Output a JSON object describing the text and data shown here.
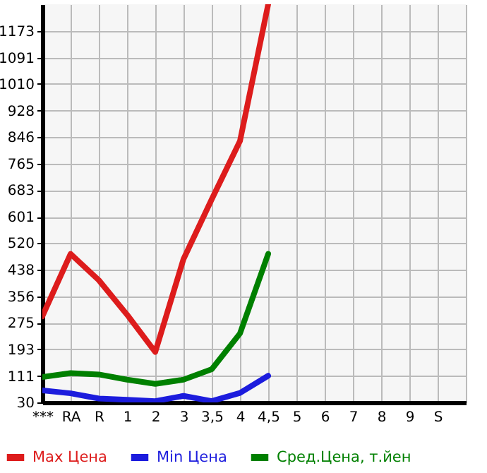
{
  "chart_data": {
    "type": "line",
    "categories": [
      "***",
      "RA",
      "R",
      "1",
      "2",
      "3",
      "3,5",
      "4",
      "4,5",
      "5",
      "6",
      "7",
      "8",
      "9",
      "S",
      null
    ],
    "series": [
      {
        "name": "Max Цена",
        "color": "#dd1c1c",
        "values": [
          295,
          487,
          406,
          300,
          185,
          471,
          655,
          834,
          1255,
          null,
          null,
          null,
          null,
          null,
          null,
          null
        ]
      },
      {
        "name": "Min Цена",
        "color": "#1c1cdd",
        "values": [
          67,
          58,
          42,
          38,
          34,
          50,
          34,
          59,
          112,
          null,
          null,
          null,
          null,
          null,
          null,
          null
        ]
      },
      {
        "name": "Сред.Цена, т.йен",
        "color": "#008000",
        "values": [
          108,
          120,
          116,
          100,
          87,
          100,
          132,
          242,
          487,
          null,
          null,
          null,
          null,
          null,
          null,
          null
        ]
      }
    ],
    "ylim": [
      30,
      1255
    ],
    "yticks": [
      30,
      111,
      193,
      275,
      356,
      438,
      520,
      601,
      683,
      765,
      846,
      928,
      1010,
      1091,
      1173
    ],
    "grid": true,
    "legend": "bottom",
    "line_style": "solid"
  }
}
